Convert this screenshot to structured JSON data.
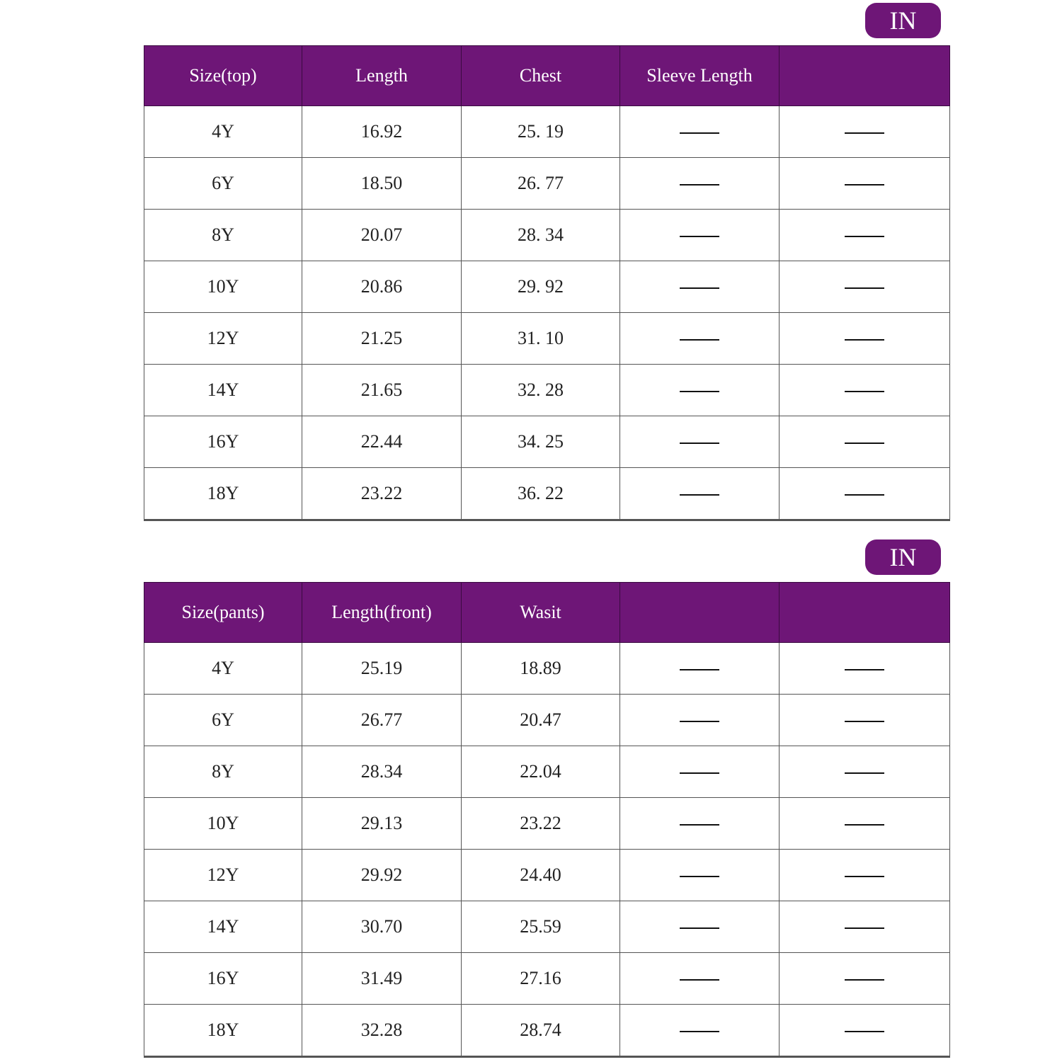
{
  "unit_badge": "IN",
  "colors": {
    "header": "#6e1677"
  },
  "top_table": {
    "headers": [
      "Size(top)",
      "Length",
      "Chest",
      "Sleeve Length",
      ""
    ],
    "rows": [
      [
        "4Y",
        "16.92",
        "25. 19",
        "—",
        "—"
      ],
      [
        "6Y",
        "18.50",
        "26. 77",
        "—",
        "—"
      ],
      [
        "8Y",
        "20.07",
        "28. 34",
        "—",
        "—"
      ],
      [
        "10Y",
        "20.86",
        "29. 92",
        "—",
        "—"
      ],
      [
        "12Y",
        "21.25",
        "31. 10",
        "—",
        "—"
      ],
      [
        "14Y",
        "21.65",
        "32. 28",
        "—",
        "—"
      ],
      [
        "16Y",
        "22.44",
        "34. 25",
        "—",
        "—"
      ],
      [
        "18Y",
        "23.22",
        "36. 22",
        "—",
        "—"
      ]
    ]
  },
  "bottom_table": {
    "headers": [
      "Size(pants)",
      "Length(front)",
      "Wasit",
      "",
      ""
    ],
    "rows": [
      [
        "4Y",
        "25.19",
        "18.89",
        "—",
        "—"
      ],
      [
        "6Y",
        "26.77",
        "20.47",
        "—",
        "—"
      ],
      [
        "8Y",
        "28.34",
        "22.04",
        "—",
        "—"
      ],
      [
        "10Y",
        "29.13",
        "23.22",
        "—",
        "—"
      ],
      [
        "12Y",
        "29.92",
        "24.40",
        "—",
        "—"
      ],
      [
        "14Y",
        "30.70",
        "25.59",
        "—",
        "—"
      ],
      [
        "16Y",
        "31.49",
        "27.16",
        "—",
        "—"
      ],
      [
        "18Y",
        "32.28",
        "28.74",
        "—",
        "—"
      ]
    ]
  }
}
